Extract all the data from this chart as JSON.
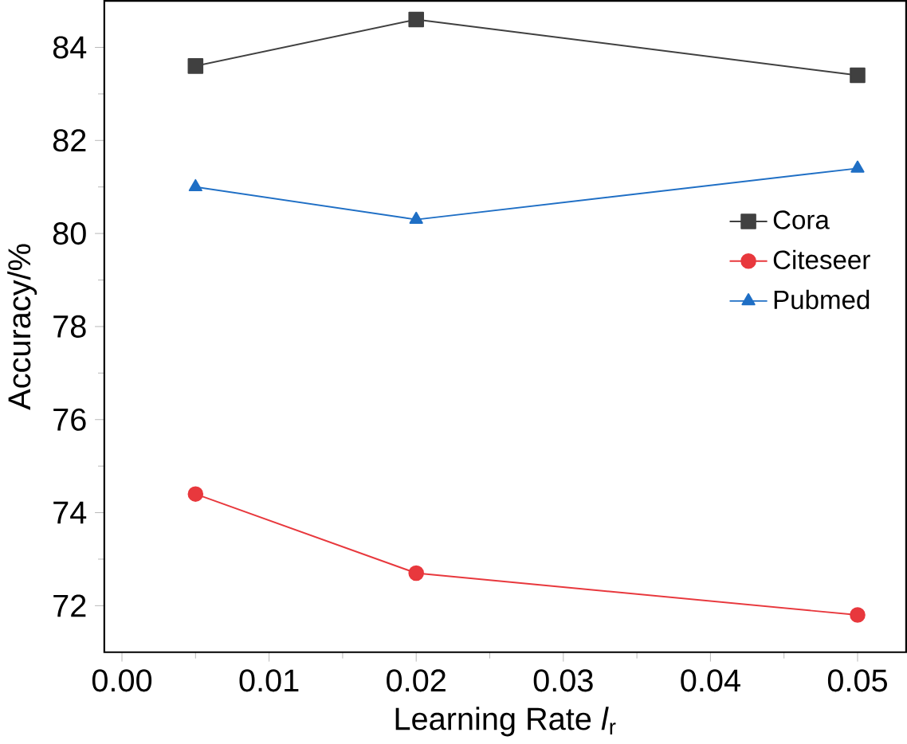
{
  "chart_data": {
    "type": "line",
    "xlabel": "Learning Rate *l*$_{r}$",
    "ylabel": "Accuracy/%",
    "x": [
      0.005,
      0.02,
      0.05
    ],
    "series": [
      {
        "name": "Cora",
        "color": "#404040",
        "marker": "square",
        "values": [
          83.6,
          84.6,
          83.4
        ]
      },
      {
        "name": "Citeseer",
        "color": "#e8383d",
        "marker": "circle",
        "values": [
          74.4,
          72.7,
          71.8
        ]
      },
      {
        "name": "Pubmed",
        "color": "#1f6fc5",
        "marker": "triangle",
        "values": [
          81.0,
          80.3,
          81.4
        ]
      }
    ],
    "xlim": [
      -0.0012,
      0.0533
    ],
    "ylim": [
      71,
      85
    ],
    "xticks": [
      {
        "value": 0,
        "label": "0.00"
      },
      {
        "value": 0.01,
        "label": "0.01"
      },
      {
        "value": 0.02,
        "label": "0.02"
      },
      {
        "value": 0.03,
        "label": "0.03"
      },
      {
        "value": 0.04,
        "label": "0.04"
      },
      {
        "value": 0.05,
        "label": "0.05"
      }
    ],
    "yticks": [
      72,
      74,
      76,
      78,
      80,
      82,
      84
    ],
    "legend": "right",
    "grid": false,
    "line_style": "solid"
  }
}
